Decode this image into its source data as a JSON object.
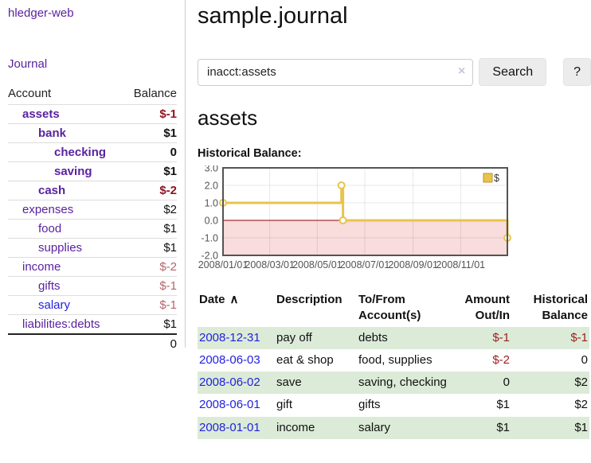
{
  "app": {
    "title": "hledger-web"
  },
  "sidebar": {
    "journal_link": "Journal",
    "account_header": "Account",
    "balance_header": "Balance",
    "accounts": [
      {
        "name": "assets",
        "level": 1,
        "bold": true,
        "balance": "$-1",
        "neg": true,
        "blue": false
      },
      {
        "name": "bank",
        "level": 2,
        "bold": true,
        "balance": "$1",
        "neg": false,
        "blue": false
      },
      {
        "name": "checking",
        "level": 3,
        "bold": true,
        "balance": "0",
        "neg": false,
        "blue": false
      },
      {
        "name": "saving",
        "level": 3,
        "bold": true,
        "balance": "$1",
        "neg": false,
        "blue": false
      },
      {
        "name": "cash",
        "level": 2,
        "bold": true,
        "balance": "$-2",
        "neg": true,
        "blue": false
      },
      {
        "name": "expenses",
        "level": 1,
        "bold": false,
        "balance": "$2",
        "neg": false,
        "blue": false
      },
      {
        "name": "food",
        "level": 2,
        "bold": false,
        "balance": "$1",
        "neg": false,
        "blue": false
      },
      {
        "name": "supplies",
        "level": 2,
        "bold": false,
        "balance": "$1",
        "neg": false,
        "blue": false
      },
      {
        "name": "income",
        "level": 1,
        "bold": false,
        "balance": "$-2",
        "neg": true,
        "blue": false
      },
      {
        "name": "gifts",
        "level": 2,
        "bold": false,
        "balance": "$-1",
        "neg": true,
        "blue": false
      },
      {
        "name": "salary",
        "level": 2,
        "bold": false,
        "balance": "$-1",
        "neg": true,
        "blue": true
      },
      {
        "name": "liabilities:debts",
        "level": 1,
        "bold": false,
        "balance": "$1",
        "neg": false,
        "blue": false
      }
    ],
    "total": "0"
  },
  "header": {
    "title": "sample.journal"
  },
  "search": {
    "value": "inacct:assets",
    "clear_icon": "×",
    "button_label": "Search",
    "help_label": "?"
  },
  "account_page": {
    "heading": "assets",
    "chart_label": "Historical Balance:"
  },
  "chart_data": {
    "type": "line",
    "step": true,
    "title": "Historical Balance:",
    "legend": [
      {
        "label": "$",
        "color": "#e8c44c",
        "position": "top-right"
      }
    ],
    "ylim": [
      -2,
      3
    ],
    "yticks": [
      3.0,
      2.0,
      1.0,
      0.0,
      -1.0,
      -2.0
    ],
    "xtick_labels": [
      "2008/01/01",
      "2008/03/01",
      "2008/05/01",
      "2008/07/01",
      "2008/09/01",
      "2008/11/01"
    ],
    "xtick_days": [
      0,
      60,
      121,
      182,
      244,
      305
    ],
    "x_total_days": 365,
    "grid": true,
    "points": [
      {
        "date": "2008-01-01",
        "day": 0,
        "value": 1
      },
      {
        "date": "2008-06-01",
        "day": 152,
        "value": 2
      },
      {
        "date": "2008-06-03",
        "day": 154,
        "value": 0
      },
      {
        "date": "2008-12-31",
        "day": 365,
        "value": -1
      }
    ],
    "line_color": "#e8c44c",
    "marker_fill": "#ffffff",
    "negative_fill": "#f9dcdc",
    "zero_line_color": "#8b0000",
    "border_color": "#545454",
    "tick_color": "#545454"
  },
  "register_table": {
    "sort_icon": "∧",
    "headers": [
      {
        "lines": [
          "Date"
        ],
        "align": "left",
        "sorted": true
      },
      {
        "lines": [
          "Description"
        ],
        "align": "left",
        "sorted": false
      },
      {
        "lines": [
          "To/From",
          "Account(s)"
        ],
        "align": "left",
        "sorted": false
      },
      {
        "lines": [
          "Amount",
          "Out/In"
        ],
        "align": "right",
        "sorted": false
      },
      {
        "lines": [
          "Historical",
          "Balance"
        ],
        "align": "right",
        "sorted": false
      }
    ],
    "rows": [
      {
        "date": "2008-12-31",
        "description": "pay off",
        "accounts": "debts",
        "amount": "$-1",
        "amount_neg": true,
        "balance": "$-1",
        "balance_neg": true
      },
      {
        "date": "2008-06-03",
        "description": "eat & shop",
        "accounts": "food, supplies",
        "amount": "$-2",
        "amount_neg": true,
        "balance": "0",
        "balance_neg": false
      },
      {
        "date": "2008-06-02",
        "description": "save",
        "accounts": "saving, checking",
        "amount": "0",
        "amount_neg": false,
        "balance": "$2",
        "balance_neg": false
      },
      {
        "date": "2008-06-01",
        "description": "gift",
        "accounts": "gifts",
        "amount": "$1",
        "amount_neg": false,
        "balance": "$2",
        "balance_neg": false
      },
      {
        "date": "2008-01-01",
        "description": "income",
        "accounts": "salary",
        "amount": "$1",
        "amount_neg": false,
        "balance": "$1",
        "balance_neg": false
      }
    ]
  }
}
